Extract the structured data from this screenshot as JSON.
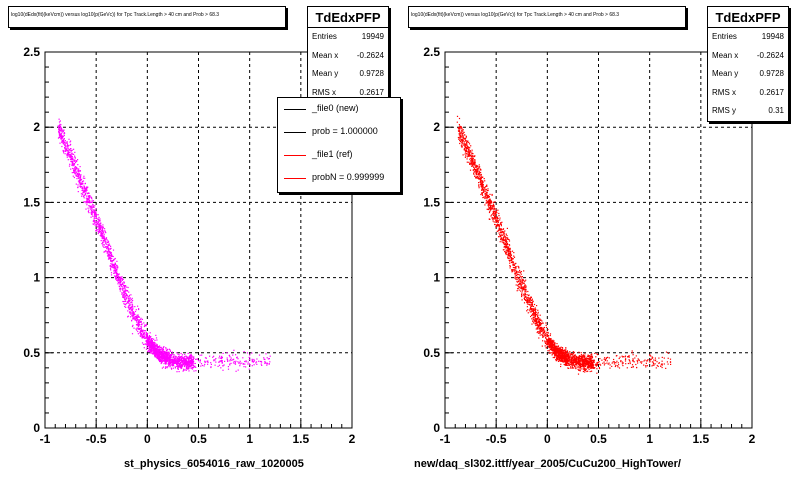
{
  "chart_data": [
    {
      "type": "scatter",
      "title": "log10(dEdx(fit)(keVcm)) versus log10(p(GeVc)) for Tpc Track.Length > 40 cm and Prob > 68.3",
      "xlabel": "st_physics_6054016_raw_1020005",
      "ylabel": "",
      "xlim": [
        -1,
        2
      ],
      "ylim": [
        0,
        2.5
      ],
      "xticks": [
        "-1",
        "-0.5",
        "0",
        "0.5",
        "1",
        "1.5",
        "2"
      ],
      "yticks": [
        "0",
        "0.5",
        "1",
        "1.5",
        "2",
        "2.5"
      ],
      "grid": true,
      "color": "#ff00ff",
      "curve": [
        [
          -0.88,
          2.0
        ],
        [
          -0.75,
          1.8
        ],
        [
          -0.6,
          1.55
        ],
        [
          -0.45,
          1.3
        ],
        [
          -0.3,
          1.02
        ],
        [
          -0.15,
          0.78
        ],
        [
          0.0,
          0.58
        ],
        [
          0.1,
          0.5
        ],
        [
          0.2,
          0.46
        ],
        [
          0.35,
          0.44
        ],
        [
          0.5,
          0.44
        ],
        [
          0.8,
          0.45
        ],
        [
          1.1,
          0.45
        ]
      ],
      "stats": {
        "name": "TdEdxPFP",
        "rows": [
          {
            "label": "Entries",
            "value": "19949"
          },
          {
            "label": "Mean x",
            "value": "-0.2624"
          },
          {
            "label": "Mean y",
            "value": "0.9728"
          },
          {
            "label": "RMS x",
            "value": "0.2617"
          }
        ]
      },
      "legend": [
        {
          "label": "_file0 (new)",
          "color": "#000000"
        },
        {
          "label": "prob = 1.000000",
          "color": "#000000"
        },
        {
          "label": "_file1 (ref)",
          "color": "#ff0000"
        },
        {
          "label": "probN = 0.999999",
          "color": "#ff0000"
        }
      ]
    },
    {
      "type": "scatter",
      "title": "log10(dEdx(fit)(keVcm)) versus log10(p(GeVc)) for Tpc Track.Length > 40 cm and Prob > 68.3",
      "xlabel": "new/daq_sl302.ittf/year_2005/CuCu200_HighTower/",
      "ylabel": "",
      "xlim": [
        -1,
        2
      ],
      "ylim": [
        0,
        2.5
      ],
      "xticks": [
        "-1",
        "-0.5",
        "0",
        "0.5",
        "1",
        "1.5",
        "2"
      ],
      "yticks": [
        "0",
        "0.5",
        "1",
        "1.5",
        "2",
        "2.5"
      ],
      "grid": true,
      "color": "#ff0000",
      "curve": [
        [
          -0.88,
          2.0
        ],
        [
          -0.75,
          1.8
        ],
        [
          -0.6,
          1.55
        ],
        [
          -0.45,
          1.3
        ],
        [
          -0.3,
          1.02
        ],
        [
          -0.15,
          0.78
        ],
        [
          0.0,
          0.58
        ],
        [
          0.1,
          0.5
        ],
        [
          0.2,
          0.46
        ],
        [
          0.35,
          0.44
        ],
        [
          0.5,
          0.44
        ],
        [
          0.8,
          0.45
        ],
        [
          1.1,
          0.45
        ]
      ],
      "stats": {
        "name": "TdEdxPFP",
        "rows": [
          {
            "label": "Entries",
            "value": "19948"
          },
          {
            "label": "Mean x",
            "value": "-0.2624"
          },
          {
            "label": "Mean y",
            "value": "0.9728"
          },
          {
            "label": "RMS x",
            "value": "0.2617"
          },
          {
            "label": "RMS y",
            "value": "0.31"
          }
        ]
      }
    }
  ]
}
